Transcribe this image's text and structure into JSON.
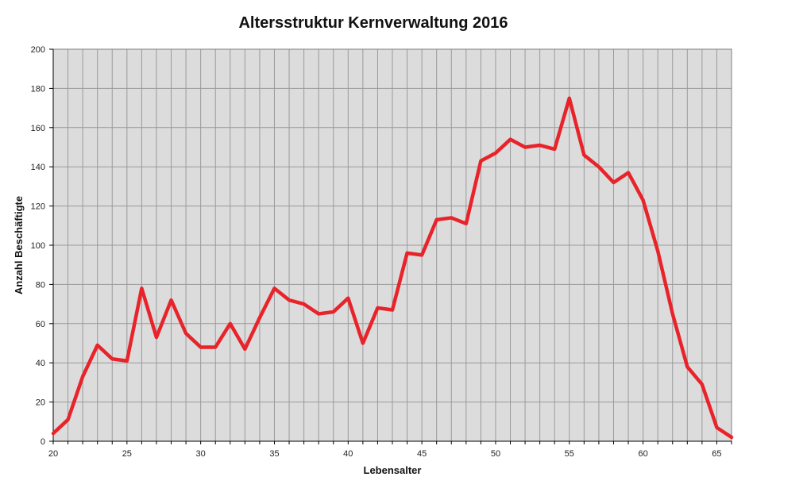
{
  "chart_data": {
    "type": "line",
    "title": "Altersstruktur Kernverwaltung 2016",
    "xlabel": "Lebensalter",
    "ylabel": "Anzahl Beschäftigte",
    "xlim": [
      20,
      66
    ],
    "ylim": [
      0,
      200
    ],
    "xticks": [
      20,
      25,
      30,
      35,
      40,
      45,
      50,
      55,
      60,
      65
    ],
    "yticks": [
      0,
      20,
      40,
      60,
      80,
      100,
      120,
      140,
      160,
      180,
      200
    ],
    "grid": true,
    "legend": "none",
    "colors": {
      "line": "#e8232a",
      "plot_bg": "#dcdcdc",
      "grid": "#9a9a9a",
      "axis": "#000000"
    },
    "x": [
      20,
      21,
      22,
      23,
      24,
      25,
      26,
      27,
      28,
      29,
      30,
      31,
      32,
      33,
      34,
      35,
      36,
      37,
      38,
      39,
      40,
      41,
      42,
      43,
      44,
      45,
      46,
      47,
      48,
      49,
      50,
      51,
      52,
      53,
      54,
      55,
      56,
      57,
      58,
      59,
      60,
      61,
      62,
      63,
      64,
      65,
      66
    ],
    "values": [
      4,
      11,
      33,
      49,
      42,
      41,
      78,
      53,
      72,
      55,
      48,
      48,
      60,
      47,
      63,
      78,
      72,
      70,
      65,
      66,
      73,
      50,
      68,
      67,
      96,
      95,
      113,
      114,
      111,
      143,
      147,
      154,
      150,
      151,
      149,
      175,
      146,
      140,
      132,
      137,
      123,
      97,
      65,
      38,
      29,
      7,
      2
    ]
  }
}
